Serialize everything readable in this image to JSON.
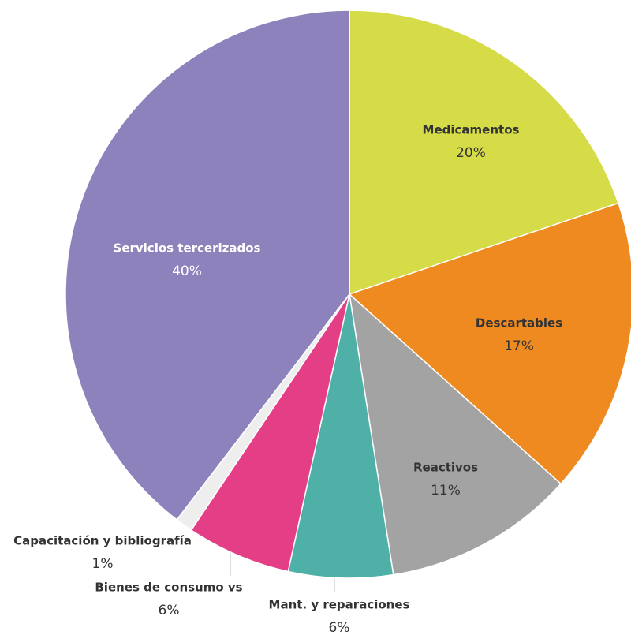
{
  "chart_data": {
    "type": "pie",
    "categories": [
      "Medicamentos",
      "Descartables",
      "Reactivos",
      "Mant. y reparaciones",
      "Bienes de consumo vs",
      "Capacitación y bibliografía",
      "Servicios tercerizados"
    ],
    "values": [
      20,
      17,
      11,
      6,
      6,
      1,
      40
    ],
    "value_labels": [
      "20%",
      "17%",
      "11%",
      "6%",
      "6%",
      "1%",
      "40%"
    ],
    "colors": [
      "#d6dc48",
      "#ee8a20",
      "#a3a3a3",
      "#4fb0a8",
      "#e43f86",
      "#eeeeee",
      "#8e82bd"
    ]
  }
}
